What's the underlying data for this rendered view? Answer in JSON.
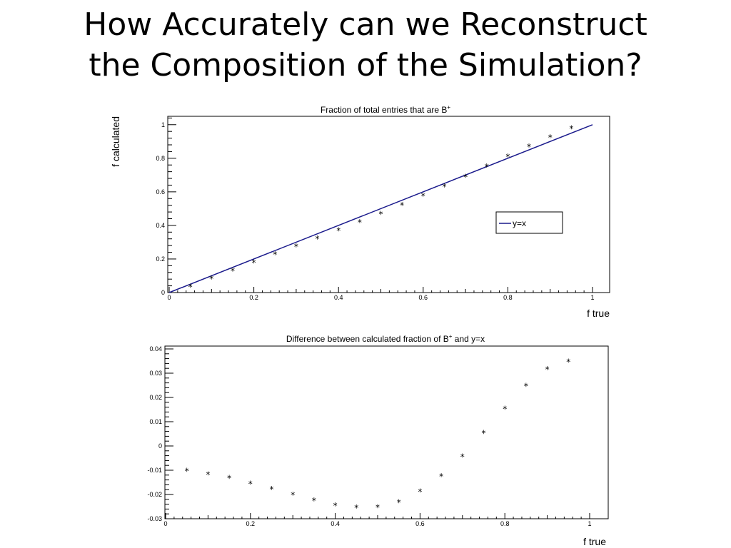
{
  "slide": {
    "title_line1": "How Accurately can we Reconstruct",
    "title_line2": "the Composition of the Simulation?"
  },
  "chart_data": [
    {
      "type": "scatter",
      "title_main": "Fraction of total entries that are B",
      "title_sup": "+",
      "xlabel": "f true",
      "ylabel": "f calculated",
      "xlim": [
        0,
        1
      ],
      "ylim": [
        0,
        1.05
      ],
      "xticks": [
        0,
        0.2,
        0.4,
        0.6,
        0.8,
        1
      ],
      "xtick_labels": [
        "0",
        "0.2",
        "0.4",
        "0.6",
        "0.8",
        "1"
      ],
      "yticks": [
        0,
        0.2,
        0.4,
        0.6,
        0.8,
        1
      ],
      "ytick_labels": [
        "0",
        "0.2",
        "0.4",
        "0.6",
        "0.8",
        "1"
      ],
      "grid": false,
      "legend": {
        "position": "right-middle",
        "entries": [
          "y=x"
        ]
      },
      "line": {
        "name": "y=x",
        "x": [
          0,
          1
        ],
        "y": [
          0,
          1
        ],
        "color": "#1a1a8c"
      },
      "points": {
        "x": [
          0.05,
          0.1,
          0.15,
          0.2,
          0.25,
          0.3,
          0.35,
          0.4,
          0.45,
          0.5,
          0.55,
          0.6,
          0.65,
          0.7,
          0.75,
          0.8,
          0.85,
          0.9,
          0.95
        ],
        "y": [
          0.04,
          0.089,
          0.137,
          0.185,
          0.233,
          0.28,
          0.328,
          0.376,
          0.425,
          0.475,
          0.527,
          0.582,
          0.638,
          0.696,
          0.756,
          0.816,
          0.875,
          0.932,
          0.985
        ]
      }
    },
    {
      "type": "scatter",
      "title_main": "Difference between calculated fraction of B",
      "title_sup": "+",
      "title_tail": " and y=x",
      "xlabel": "f true",
      "ylabel": "",
      "xlim": [
        0,
        1
      ],
      "ylim": [
        -0.03,
        0.04
      ],
      "xticks": [
        0,
        0.2,
        0.4,
        0.6,
        0.8,
        1
      ],
      "xtick_labels": [
        "0",
        "0.2",
        "0.4",
        "0.6",
        "0.8",
        "1"
      ],
      "yticks": [
        -0.03,
        -0.02,
        -0.01,
        0,
        0.01,
        0.02,
        0.03,
        0.04
      ],
      "ytick_labels": [
        "-0.03",
        "-0.02",
        "-0.01",
        "0",
        "0.01",
        "0.02",
        "0.03",
        "0.04"
      ],
      "grid": false,
      "points": {
        "x": [
          0.05,
          0.1,
          0.15,
          0.2,
          0.25,
          0.3,
          0.35,
          0.4,
          0.45,
          0.5,
          0.55,
          0.6,
          0.65,
          0.7,
          0.75,
          0.8,
          0.85,
          0.9,
          0.95
        ],
        "y": [
          -0.0098,
          -0.0113,
          -0.0128,
          -0.0151,
          -0.0173,
          -0.0197,
          -0.0221,
          -0.0241,
          -0.025,
          -0.0249,
          -0.0228,
          -0.0184,
          -0.0121,
          -0.0039,
          0.0058,
          0.0158,
          0.0251,
          0.032,
          0.0351
        ]
      }
    }
  ]
}
